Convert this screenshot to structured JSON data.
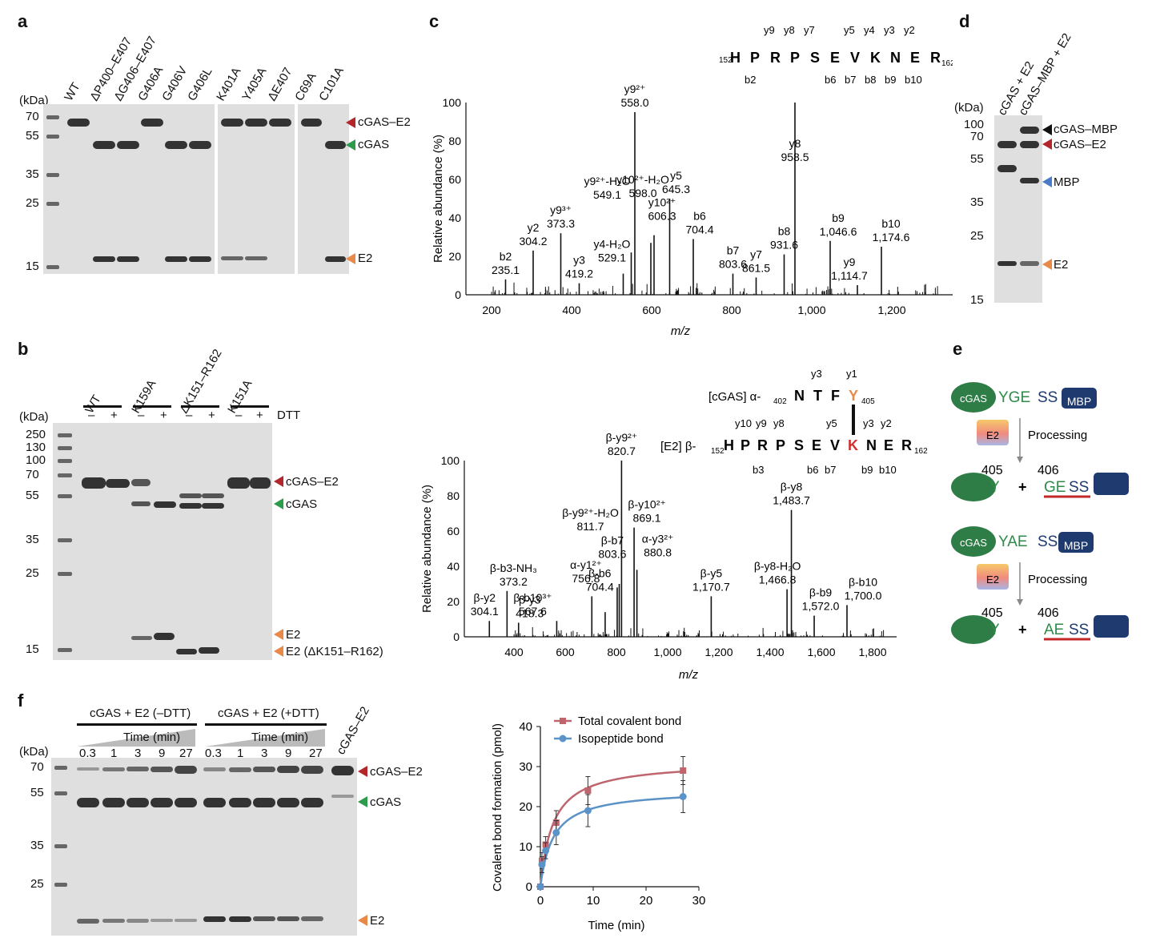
{
  "panel_labels": {
    "a": "a",
    "b": "b",
    "c": "c",
    "d": "d",
    "e": "e",
    "f": "f"
  },
  "colors": {
    "red": "#b3262b",
    "green": "#2e9a4b",
    "blue": "#4a7ac8",
    "orange": "#e8894a",
    "black": "#111111",
    "chart_red": "#c0646e",
    "chart_blue": "#5b93c9",
    "oval": "#2e7d46",
    "box": "#1f3a6e"
  },
  "panel_a": {
    "kda": "(kDa)",
    "lanes": [
      "WT",
      "ΔP400–E407",
      "ΔG406–E407",
      "G406A",
      "G406V",
      "G406L",
      "K401A",
      "Y405A",
      "ΔE407",
      "C69A",
      "C101A"
    ],
    "markers": [
      "70",
      "55",
      "35",
      "25",
      "15"
    ],
    "arrows": [
      "cGAS–E2",
      "cGAS",
      "E2"
    ]
  },
  "panel_b": {
    "kda": "(kDa)",
    "groups": [
      "WT",
      "K159A",
      "ΔK151–R162",
      "K151A"
    ],
    "dtt": "DTT",
    "minus": "–",
    "plus": "+",
    "markers": [
      "250",
      "130",
      "100",
      "70",
      "55",
      "35",
      "25",
      "15"
    ],
    "arrows": [
      "cGAS–E2",
      "cGAS",
      "E2",
      "E2 (ΔK151–R162)"
    ]
  },
  "panel_c_top": {
    "ylabel": "Relative abundance (%)",
    "xlabel": "m/z",
    "yticks": [
      "0",
      "20",
      "40",
      "60",
      "80",
      "100"
    ],
    "xticks": [
      "200",
      "400",
      "600",
      "800",
      "1,000",
      "1,200"
    ],
    "seq_start": "152",
    "seq_end": "162",
    "residues": [
      "H",
      "P",
      "R",
      "P",
      "S",
      "E",
      "V",
      "K",
      "N",
      "E",
      "R"
    ],
    "y_ions": [
      "y9",
      "y8",
      "y7",
      "y5",
      "y4",
      "y3",
      "y2"
    ],
    "b_ions": [
      "b2",
      "b6",
      "b7",
      "b8",
      "b9",
      "b10"
    ],
    "y8_label": "y8",
    "peaks": [
      {
        "l": "b2",
        "v": "235.1"
      },
      {
        "l": "y2",
        "v": "304.2"
      },
      {
        "l": "y9³⁺",
        "v": "373.3"
      },
      {
        "l": "y3",
        "v": "419.2"
      },
      {
        "l": "y4-H₂O",
        "v": "529.1"
      },
      {
        "l": "y9²⁺-H₂O",
        "v": "549.1"
      },
      {
        "l": "y9²⁺",
        "v": "558.0"
      },
      {
        "l": "y10²⁺-H₂O",
        "v": "598.0"
      },
      {
        "l": "y10²⁺",
        "v": "606.3"
      },
      {
        "l": "y5",
        "v": "645.3"
      },
      {
        "l": "b6",
        "v": "704.4"
      },
      {
        "l": "b7",
        "v": "803.6"
      },
      {
        "l": "y7",
        "v": "861.5"
      },
      {
        "l": "b8",
        "v": "931.6"
      },
      {
        "l": "y8",
        "v": "958.5"
      },
      {
        "l": "b9",
        "v": "1,046.6"
      },
      {
        "l": "y9",
        "v": "1,114.7"
      },
      {
        "l": "b10",
        "v": "1,174.6"
      }
    ]
  },
  "panel_c_bottom": {
    "ylabel": "Relative abundance (%)",
    "xlabel": "m/z",
    "yticks": [
      "0",
      "20",
      "40",
      "60",
      "80",
      "100"
    ],
    "xticks": [
      "400",
      "600",
      "800",
      "1,000",
      "1,200",
      "1,400",
      "1,600",
      "1,800"
    ],
    "alpha_prefix": "[cGAS] α-",
    "alpha_start": "402",
    "alpha_res": [
      "N",
      "T",
      "F",
      "Y"
    ],
    "alpha_end": "405",
    "alpha_ions": [
      "y3",
      "y1"
    ],
    "beta_prefix": "[E2] β-",
    "beta_start": "152",
    "beta_end": "162",
    "beta_res": [
      "H",
      "P",
      "R",
      "P",
      "S",
      "E",
      "V",
      "K",
      "N",
      "E",
      "R"
    ],
    "beta_y": [
      "y10",
      "y9",
      "y8",
      "y5",
      "y3",
      "y2"
    ],
    "beta_b": [
      "b3",
      "b6",
      "b7",
      "b9",
      "b10"
    ],
    "peaks": [
      {
        "l": "β-y2",
        "v": "304.1"
      },
      {
        "l": "β-b3-NH₃",
        "v": "373.2"
      },
      {
        "l": "β-y3",
        "v": "418.3"
      },
      {
        "l": "β-b10³⁺",
        "v": "567.6"
      },
      {
        "l": "β-b6",
        "v": "704.4"
      },
      {
        "l": "α-y1²⁺",
        "v": "756.8"
      },
      {
        "l": "β-b7",
        "v": "803.6"
      },
      {
        "l": "β-y9²⁺-H₂O",
        "v": "811.7"
      },
      {
        "l": "β-y9²⁺",
        "v": "820.7"
      },
      {
        "l": "β-y10²⁺",
        "v": "869.1"
      },
      {
        "l": "α-y3²⁺",
        "v": "880.8"
      },
      {
        "l": "β-y5",
        "v": "1,170.7"
      },
      {
        "l": "β-y8-H₂O",
        "v": "1,466.8"
      },
      {
        "l": "β-y8",
        "v": "1,483.7"
      },
      {
        "l": "β-b9",
        "v": "1,572.0"
      },
      {
        "l": "β-b10",
        "v": "1,700.0"
      }
    ]
  },
  "panel_d": {
    "kda": "(kDa)",
    "lanes": [
      "cGAS + E2",
      "cGAS–MBP + E2"
    ],
    "markers": [
      "100",
      "70",
      "55",
      "35",
      "25",
      "15"
    ],
    "arrows": [
      "cGAS–MBP",
      "cGAS–E2",
      "MBP",
      "E2"
    ]
  },
  "panel_e": {
    "top": {
      "cgas": "cGAS",
      "seq_green": "YGE",
      "seq_blue": "SS",
      "mbp": "MBP",
      "e2": "E2",
      "processing": "Processing",
      "n405": "405",
      "n406": "406",
      "y": "Y",
      "plus": "+",
      "prod_green": "GE",
      "prod_blue": "SS"
    },
    "bottom": {
      "cgas": "cGAS",
      "seq_green": "YAE",
      "seq_blue": "SS",
      "mbp": "MBP",
      "e2": "E2",
      "processing": "Processing",
      "n405": "405",
      "n406": "406",
      "y": "Y",
      "plus": "+",
      "prod_green": "AE",
      "prod_blue": "SS"
    }
  },
  "panel_f_gel": {
    "kda": "(kDa)",
    "cond1": "cGAS + E2 (–DTT)",
    "cond2": "cGAS + E2 (+DTT)",
    "time": "Time (min)",
    "times": [
      "0.3",
      "1",
      "3",
      "9",
      "27",
      "0.3",
      "1",
      "3",
      "9",
      "27"
    ],
    "last_lane": "cGAS–E2",
    "markers": [
      "70",
      "55",
      "35",
      "25"
    ],
    "arrows": [
      "cGAS–E2",
      "cGAS",
      "E2"
    ]
  },
  "chart_data": {
    "type": "line",
    "title": "",
    "xlabel": "Time (min)",
    "ylabel": "Covalent bond formation (pmol)",
    "xlim": [
      0,
      30
    ],
    "ylim": [
      0,
      40
    ],
    "xticks": [
      0,
      10,
      20,
      30
    ],
    "yticks": [
      0,
      10,
      20,
      30,
      40
    ],
    "x": [
      0,
      0.3,
      1,
      3,
      9,
      27
    ],
    "series": [
      {
        "name": "Total covalent bond",
        "values": [
          0,
          6.5,
          10.5,
          16,
          24,
          29
        ],
        "err": [
          0,
          2,
          2,
          3,
          3.5,
          3.5
        ]
      },
      {
        "name": "Isopeptide bond",
        "values": [
          0,
          5.5,
          9,
          13.5,
          19,
          22.5
        ],
        "err": [
          0,
          2,
          2,
          3,
          4,
          4
        ]
      }
    ],
    "legend": "top-left"
  }
}
